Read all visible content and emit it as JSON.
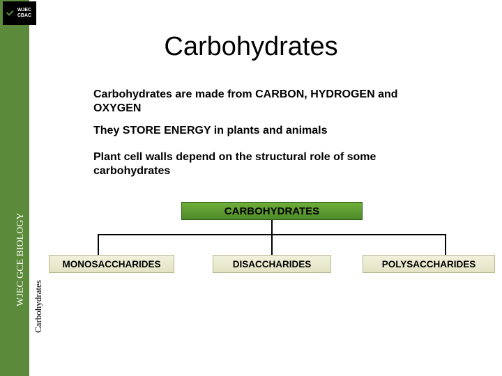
{
  "logo": {
    "line1": "WJEC",
    "line2": "CBAC"
  },
  "sidebar": {
    "label_main": "WJEC GCE BIOLOGY",
    "label_sub": "Carbohydrates"
  },
  "title": "Carbohydrates",
  "paragraphs": {
    "p1": "Carbohydrates are made from CARBON, HYDROGEN and OXYGEN",
    "p2": "They STORE ENERGY in plants and animals",
    "p3": "Plant cell walls depend on the structural role of some carbohydrates"
  },
  "diagram": {
    "type": "tree",
    "root": {
      "label": "CARBOHYDRATES",
      "fill_gradient": [
        "#6fae3a",
        "#4e8a2a"
      ],
      "border": "#2f5a18",
      "text_color": "#000000",
      "fontsize": 15
    },
    "children": [
      {
        "label": "MONOSACCHARIDES"
      },
      {
        "label": "DISACCHARIDES"
      },
      {
        "label": "POLYSACCHARIDES"
      }
    ],
    "child_style": {
      "fill_gradient": [
        "#f2f2dd",
        "#e3e3c4"
      ],
      "border": "#b7b78f",
      "text_color": "#000000",
      "fontsize": 13.5
    },
    "connector_color": "#000000",
    "connector_width": 2
  },
  "colors": {
    "sidebar_green": "#5a8a3a",
    "background": "#ffffff",
    "text": "#000000",
    "sidebar_text": "#ffffff"
  },
  "fonts": {
    "title": {
      "family": "Arial",
      "size": 38,
      "weight": "normal"
    },
    "body": {
      "family": "Arial",
      "size": 16,
      "weight": "bold"
    },
    "sidebar": {
      "family": "Times New Roman",
      "size": 14
    }
  }
}
